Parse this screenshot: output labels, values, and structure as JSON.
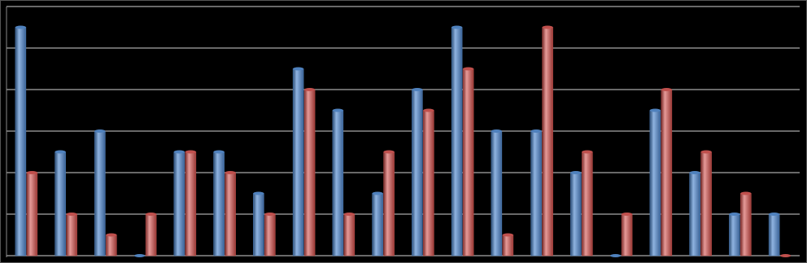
{
  "chart_data": {
    "type": "bar",
    "categories": [
      null,
      null,
      null,
      null,
      null,
      null,
      null,
      null,
      null,
      null,
      null,
      null,
      null,
      null,
      null,
      null,
      null,
      null,
      null,
      null
    ],
    "series": [
      {
        "color": "#4f81bd",
        "values": [
          5.5,
          2.5,
          3,
          0,
          2.5,
          2.5,
          1.5,
          4.5,
          3.5,
          1.5,
          4,
          5.5,
          3,
          3,
          2,
          0,
          3.5,
          2,
          1,
          1
        ]
      },
      {
        "color": "#c0504d",
        "values": [
          2,
          1,
          0.5,
          1,
          2.5,
          2,
          1,
          4,
          1,
          2.5,
          3.5,
          4.5,
          0.5,
          5.5,
          2.5,
          1,
          4,
          2.5,
          1.5,
          0
        ]
      }
    ],
    "ylim": [
      0,
      6
    ],
    "yticks": [
      0,
      1,
      2,
      3,
      4,
      5,
      6
    ],
    "grid": true
  }
}
